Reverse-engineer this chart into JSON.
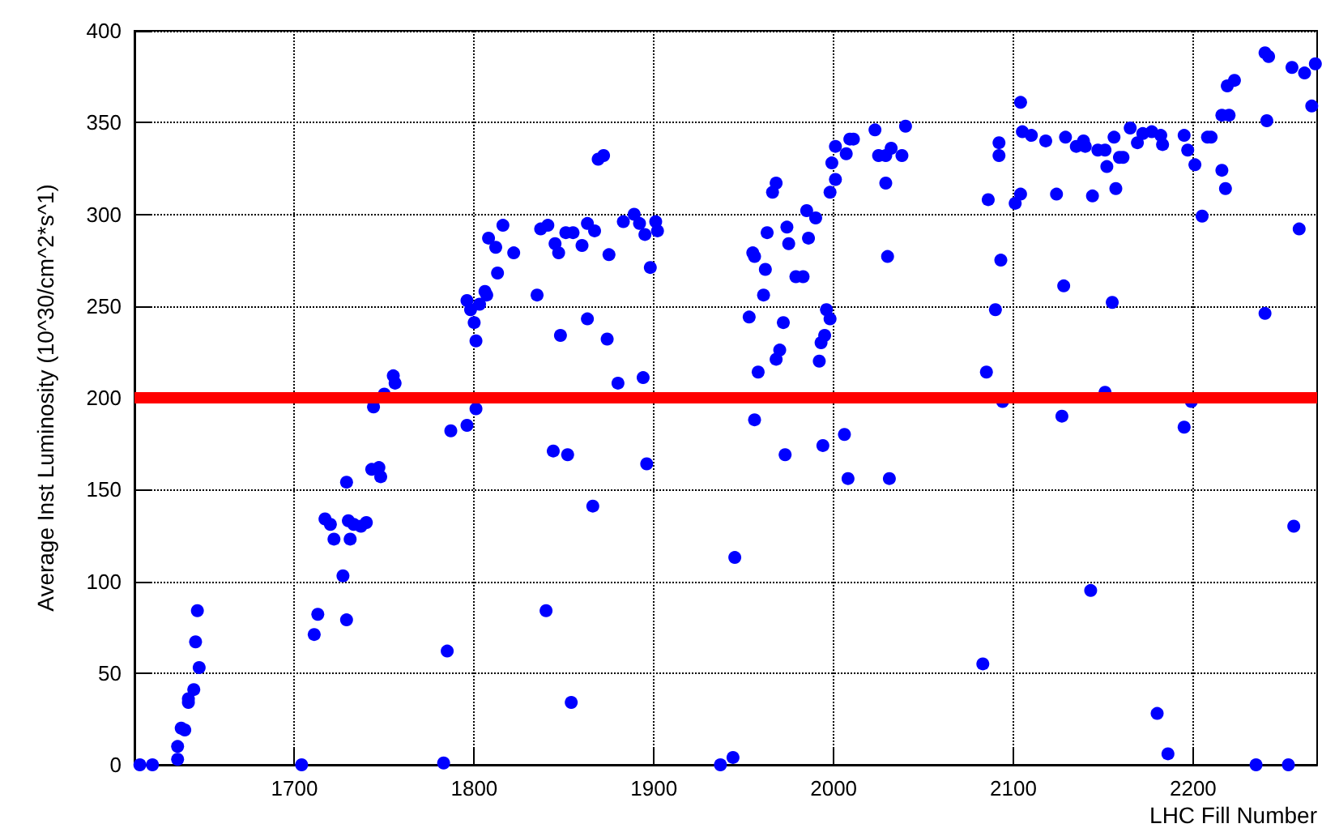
{
  "chart_data": {
    "type": "scatter",
    "xlabel": "LHC Fill Number",
    "ylabel": "Average Inst Luminosity (10^30/cm^2*s^1)",
    "xlim": [
      1611,
      2269
    ],
    "xticks": [
      1700,
      1800,
      1900,
      2000,
      2100,
      2200
    ],
    "ylim": [
      0,
      400
    ],
    "yticks": [
      0,
      50,
      100,
      150,
      200,
      250,
      300,
      350,
      400
    ],
    "grid": true,
    "marker": "circle",
    "color": "#0000ff",
    "ref_lines": [
      {
        "axis": "y",
        "value": 200,
        "color": "#ff0000",
        "line_style": "solid"
      }
    ],
    "x": [
      1614,
      1621,
      1635,
      1635,
      1637,
      1639,
      1641,
      1641,
      1644,
      1647,
      1645,
      1646,
      1704,
      1711,
      1713,
      1729,
      1727,
      1722,
      1731,
      1717,
      1720,
      1729,
      1730,
      1733,
      1737,
      1740,
      1743,
      1747,
      1748,
      1744,
      1750,
      1755,
      1756,
      1783,
      1785,
      1787,
      1796,
      1801,
      1796,
      1798,
      1800,
      1801,
      1803,
      1806,
      1807,
      1813,
      1808,
      1812,
      1816,
      1822,
      1835,
      1837,
      1841,
      1845,
      1847,
      1848,
      1840,
      1844,
      1852,
      1854,
      1851,
      1855,
      1860,
      1863,
      1867,
      1863,
      1869,
      1872,
      1875,
      1874,
      1866,
      1880,
      1883,
      1889,
      1892,
      1895,
      1894,
      1896,
      1898,
      1901,
      1902,
      1937,
      1944,
      1945,
      1956,
      1953,
      1955,
      1956,
      1963,
      1962,
      1961,
      1958,
      1966,
      1968,
      1972,
      1970,
      1968,
      1973,
      1974,
      1975,
      1979,
      1983,
      1985,
      1986,
      1990,
      1992,
      1993,
      1995,
      1996,
      1998,
      1994,
      1998,
      2001,
      1999,
      2001,
      2006,
      2008,
      2007,
      2009,
      2011,
      2023,
      2025,
      2029,
      2032,
      2029,
      2030,
      2031,
      2038,
      2040,
      2083,
      2085,
      2086,
      2090,
      2093,
      2094,
      2092,
      2092,
      2101,
      2104,
      2104,
      2105,
      2110,
      2118,
      2124,
      2127,
      2128,
      2129,
      2135,
      2139,
      2140,
      2143,
      2144,
      2147,
      2151,
      2152,
      2155,
      2156,
      2157,
      2159,
      2161,
      2151,
      2165,
      2169,
      2172,
      2177,
      2182,
      2183,
      2180,
      2186,
      2195,
      2197,
      2195,
      2199,
      2201,
      2205,
      2208,
      2210,
      2216,
      2218,
      2216,
      2220,
      2219,
      2223,
      2235,
      2240,
      2241,
      2240,
      2242,
      2253,
      2255,
      2256,
      2259,
      2262,
      2266,
      2268
    ],
    "values": [
      0,
      0,
      3,
      10,
      20,
      19,
      36,
      34,
      41,
      53,
      67,
      84,
      0,
      71,
      82,
      79,
      103,
      123,
      123,
      134,
      131,
      154,
      133,
      131,
      130,
      132,
      161,
      162,
      157,
      195,
      202,
      212,
      208,
      1,
      62,
      182,
      185,
      194,
      253,
      248,
      241,
      231,
      251,
      258,
      256,
      268,
      287,
      282,
      294,
      279,
      256,
      292,
      294,
      284,
      279,
      234,
      84,
      171,
      169,
      34,
      290,
      290,
      283,
      295,
      291,
      243,
      330,
      332,
      278,
      232,
      141,
      208,
      296,
      300,
      295,
      289,
      211,
      164,
      271,
      296,
      291,
      0,
      4,
      113,
      188,
      244,
      279,
      277,
      290,
      270,
      256,
      214,
      312,
      317,
      241,
      226,
      221,
      169,
      293,
      284,
      266,
      266,
      302,
      287,
      298,
      220,
      230,
      234,
      248,
      243,
      174,
      312,
      319,
      328,
      337,
      180,
      156,
      333,
      341,
      341,
      346,
      332,
      332,
      336,
      317,
      277,
      156,
      332,
      348,
      55,
      214,
      308,
      248,
      275,
      198,
      332,
      339,
      306,
      311,
      361,
      345,
      343,
      340,
      311,
      190,
      261,
      342,
      337,
      340,
      337,
      95,
      310,
      335,
      335,
      326,
      252,
      342,
      314,
      331,
      331,
      203,
      347,
      339,
      344,
      345,
      343,
      338,
      28,
      6,
      343,
      335,
      184,
      198,
      327,
      299,
      342,
      342,
      324,
      314,
      354,
      354,
      370,
      373,
      0,
      246,
      351,
      388,
      386,
      0,
      380,
      130,
      292,
      377,
      359,
      382
    ]
  }
}
